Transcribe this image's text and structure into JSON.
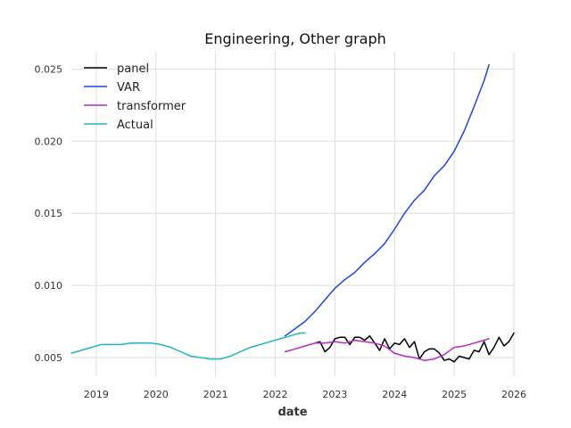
{
  "chart_data": {
    "type": "line",
    "title": "Engineering, Other graph",
    "xlabel": "date",
    "ylabel": "",
    "xlim": [
      "2018-08-01",
      "2026-01-01"
    ],
    "ylim": [
      0.0037,
      0.0262
    ],
    "x_ticks": [
      "2019",
      "2020",
      "2021",
      "2022",
      "2023",
      "2024",
      "2025",
      "2026"
    ],
    "y_ticks": [
      "0.005",
      "0.010",
      "0.015",
      "0.020",
      "0.025"
    ],
    "grid": true,
    "legend_position": "top-left",
    "series": [
      {
        "name": "panel",
        "color": "#000000",
        "x": [
          "2022-09-01",
          "2022-10-01",
          "2022-11-01",
          "2022-12-01",
          "2023-01-01",
          "2023-02-01",
          "2023-03-01",
          "2023-04-01",
          "2023-05-01",
          "2023-06-01",
          "2023-07-01",
          "2023-08-01",
          "2023-09-01",
          "2023-10-01",
          "2023-11-01",
          "2023-12-01",
          "2024-01-01",
          "2024-02-01",
          "2024-03-01",
          "2024-04-01",
          "2024-05-01",
          "2024-06-01",
          "2024-07-01",
          "2024-08-01",
          "2024-09-01",
          "2024-10-01",
          "2024-11-01",
          "2024-12-01",
          "2025-01-01",
          "2025-02-01",
          "2025-03-01",
          "2025-04-01",
          "2025-05-01",
          "2025-06-01",
          "2025-07-01",
          "2025-08-01",
          "2025-09-01",
          "2025-10-01",
          "2025-11-01",
          "2025-12-01",
          "2026-01-01"
        ],
        "y": [
          0.006,
          0.0061,
          0.0054,
          0.0057,
          0.0063,
          0.0064,
          0.0064,
          0.0059,
          0.0064,
          0.0064,
          0.0062,
          0.0065,
          0.006,
          0.0055,
          0.0063,
          0.0056,
          0.006,
          0.0059,
          0.0063,
          0.0057,
          0.0061,
          0.0049,
          0.0054,
          0.0056,
          0.0056,
          0.0053,
          0.0048,
          0.0049,
          0.0047,
          0.0051,
          0.005,
          0.0049,
          0.0055,
          0.0054,
          0.0061,
          0.0052,
          0.0057,
          0.0064,
          0.0058,
          0.0061,
          0.0067
        ]
      },
      {
        "name": "VAR",
        "color": "#1c49e8",
        "x": [
          "2022-03-01",
          "2022-05-01",
          "2022-07-01",
          "2022-09-01",
          "2022-11-01",
          "2023-01-01",
          "2023-03-01",
          "2023-05-01",
          "2023-07-01",
          "2023-09-01",
          "2023-11-01",
          "2024-01-01",
          "2024-03-01",
          "2024-05-01",
          "2024-07-01",
          "2024-09-01",
          "2024-11-01",
          "2025-01-01",
          "2025-03-01",
          "2025-05-01",
          "2025-07-01",
          "2025-08-01"
        ],
        "y": [
          0.0065,
          0.007,
          0.0075,
          0.0082,
          0.009,
          0.0098,
          0.0104,
          0.0109,
          0.0116,
          0.0122,
          0.0129,
          0.0139,
          0.015,
          0.0159,
          0.0166,
          0.0176,
          0.0183,
          0.0193,
          0.0207,
          0.0224,
          0.0242,
          0.0253
        ]
      },
      {
        "name": "transformer",
        "color": "#b62cc0",
        "x": [
          "2022-03-01",
          "2022-05-01",
          "2022-07-01",
          "2022-09-01",
          "2022-11-01",
          "2023-01-01",
          "2023-03-01",
          "2023-05-01",
          "2023-07-01",
          "2023-09-01",
          "2023-11-01",
          "2024-01-01",
          "2024-03-01",
          "2024-05-01",
          "2024-07-01",
          "2024-09-01",
          "2024-11-01",
          "2025-01-01",
          "2025-03-01",
          "2025-05-01",
          "2025-07-01",
          "2025-08-01"
        ],
        "y": [
          0.0054,
          0.0056,
          0.0058,
          0.006,
          0.006,
          0.0061,
          0.006,
          0.0062,
          0.0061,
          0.006,
          0.0058,
          0.0053,
          0.0051,
          0.005,
          0.0048,
          0.0049,
          0.0052,
          0.0057,
          0.0058,
          0.006,
          0.0062,
          0.0063
        ]
      },
      {
        "name": "Actual",
        "color": "#21b5c3",
        "x": [
          "2018-08-01",
          "2018-10-01",
          "2018-12-01",
          "2019-02-01",
          "2019-04-01",
          "2019-06-01",
          "2019-08-01",
          "2019-10-01",
          "2019-12-01",
          "2020-02-01",
          "2020-04-01",
          "2020-06-01",
          "2020-08-01",
          "2020-10-01",
          "2020-12-01",
          "2021-02-01",
          "2021-04-01",
          "2021-06-01",
          "2021-08-01",
          "2021-10-01",
          "2021-12-01",
          "2022-02-01",
          "2022-04-01",
          "2022-06-01",
          "2022-07-01"
        ],
        "y": [
          0.0053,
          0.0055,
          0.0057,
          0.0059,
          0.0059,
          0.0059,
          0.006,
          0.006,
          0.006,
          0.0059,
          0.0057,
          0.0054,
          0.0051,
          0.005,
          0.0049,
          0.0049,
          0.0051,
          0.0054,
          0.0057,
          0.0059,
          0.0061,
          0.0063,
          0.0065,
          0.0067,
          0.0067
        ]
      }
    ]
  }
}
